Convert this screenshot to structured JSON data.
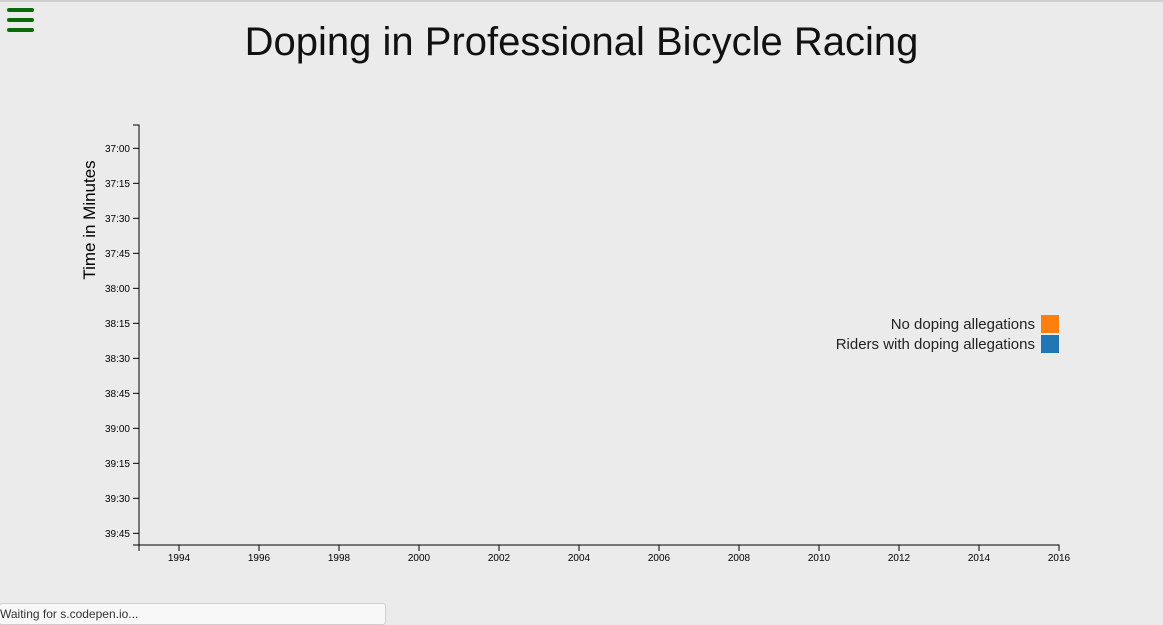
{
  "title": "Doping in Professional Bicycle Racing",
  "status_text": "Waiting for s.codepen.io...",
  "menu_icon": "hamburger-menu-icon",
  "colors": {
    "background": "#ebebeb",
    "menu": "#0b6b0b",
    "no_doping": "#ff7f0e",
    "doping": "#1f77b4"
  },
  "chart_data": {
    "type": "scatter",
    "title": "Doping in Professional Bicycle Racing",
    "xlabel": "",
    "ylabel": "Time in Minutes",
    "x_ticks": [
      "1994",
      "1996",
      "1998",
      "2000",
      "2002",
      "2004",
      "2006",
      "2008",
      "2010",
      "2012",
      "2014",
      "2016"
    ],
    "y_ticks": [
      "37:00",
      "37:15",
      "37:30",
      "37:45",
      "38:00",
      "38:15",
      "38:30",
      "38:45",
      "39:00",
      "39:15",
      "39:30",
      "39:45"
    ],
    "xlim": [
      1993,
      2016
    ],
    "ylim": [
      "36:50",
      "39:50"
    ],
    "y_inverted": true,
    "grid": false,
    "legend_position": "right",
    "legend": [
      {
        "label": "No doping allegations",
        "color": "#ff7f0e"
      },
      {
        "label": "Riders with doping allegations",
        "color": "#1f77b4"
      }
    ],
    "series": []
  }
}
